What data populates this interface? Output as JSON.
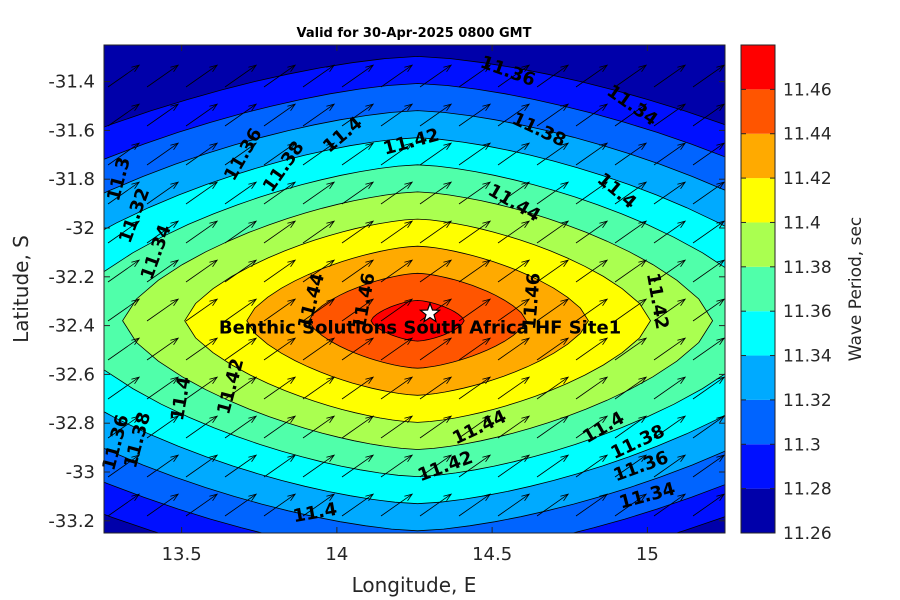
{
  "chart_data": {
    "type": "heatmap",
    "title": "Valid for 30-Apr-2025 0800 GMT",
    "xlabel": "Longitude, E",
    "ylabel": "Latitude, S",
    "colorbar_label": "Wave Period, sec",
    "xlim": [
      13.25,
      15.25
    ],
    "ylim": [
      -33.25,
      -31.25
    ],
    "xticks": [
      "13.5",
      "14",
      "14.5",
      "15"
    ],
    "xtick_values": [
      13.5,
      14,
      14.5,
      15
    ],
    "yticks": [
      "-31.4",
      "-31.6",
      "-31.8",
      "-32",
      "-32.2",
      "-32.4",
      "-32.6",
      "-32.8",
      "-33",
      "-33.2"
    ],
    "ytick_values": [
      -31.4,
      -31.6,
      -31.8,
      -32,
      -32.2,
      -32.4,
      -32.6,
      -32.8,
      -33,
      -33.2
    ],
    "colorbar_ticks": [
      "11.26",
      "11.28",
      "11.3",
      "11.32",
      "11.34",
      "11.36",
      "11.38",
      "11.4",
      "11.42",
      "11.44",
      "11.46"
    ],
    "levels": [
      11.26,
      11.28,
      11.3,
      11.32,
      11.34,
      11.36,
      11.38,
      11.4,
      11.42,
      11.44,
      11.46,
      11.48
    ],
    "colors": [
      "#0000aa",
      "#0010ff",
      "#0064ff",
      "#00aaff",
      "#00ffff",
      "#50ffaa",
      "#aaff50",
      "#ffff00",
      "#ffaa00",
      "#ff5500",
      "#ff0000"
    ],
    "peak": {
      "lon": 14.26,
      "lat": -32.38,
      "value": 11.475
    },
    "gradient": {
      "lon": 0.1,
      "lat": 0.18
    },
    "site": {
      "lon": 14.3,
      "lat": -32.35,
      "label": "Benthic Solutions South Africa HF Site1"
    },
    "vector_direction_deg": 35,
    "contour_labels": [
      {
        "text": "11.3",
        "lon": 13.3,
        "lat": -31.8,
        "angle": -75
      },
      {
        "text": "11.32",
        "lon": 13.35,
        "lat": -31.95,
        "angle": -70
      },
      {
        "text": "11.34",
        "lon": 13.42,
        "lat": -32.1,
        "angle": -70
      },
      {
        "text": "11.36",
        "lon": 13.7,
        "lat": -31.7,
        "angle": -60
      },
      {
        "text": "11.38",
        "lon": 13.83,
        "lat": -31.75,
        "angle": -55
      },
      {
        "text": "11.4",
        "lon": 14.02,
        "lat": -31.62,
        "angle": -40
      },
      {
        "text": "11.42",
        "lon": 14.24,
        "lat": -31.65,
        "angle": -15
      },
      {
        "text": "11.36",
        "lon": 14.55,
        "lat": -31.36,
        "angle": 20
      },
      {
        "text": "11.38",
        "lon": 14.65,
        "lat": -31.6,
        "angle": 25
      },
      {
        "text": "11.34",
        "lon": 14.95,
        "lat": -31.5,
        "angle": 35
      },
      {
        "text": "11.44",
        "lon": 14.57,
        "lat": -31.9,
        "angle": 30
      },
      {
        "text": "11.4",
        "lon": 14.9,
        "lat": -31.85,
        "angle": 40
      },
      {
        "text": "11.46",
        "lon": 14.63,
        "lat": -32.3,
        "angle": -85
      },
      {
        "text": "11.42",
        "lon": 15.03,
        "lat": -32.3,
        "angle": 80
      },
      {
        "text": "11.44",
        "lon": 13.92,
        "lat": -32.3,
        "angle": -75
      },
      {
        "text": "11.46",
        "lon": 14.09,
        "lat": -32.3,
        "angle": -80
      },
      {
        "text": "11.42",
        "lon": 13.66,
        "lat": -32.65,
        "angle": -75
      },
      {
        "text": "11.4",
        "lon": 13.5,
        "lat": -32.7,
        "angle": -80
      },
      {
        "text": "11.38",
        "lon": 13.36,
        "lat": -32.87,
        "angle": -75
      },
      {
        "text": "11.36",
        "lon": 13.29,
        "lat": -32.88,
        "angle": -75
      },
      {
        "text": "11.44",
        "lon": 14.46,
        "lat": -32.82,
        "angle": -25
      },
      {
        "text": "11.42",
        "lon": 14.35,
        "lat": -32.98,
        "angle": -20
      },
      {
        "text": "11.4",
        "lon": 14.86,
        "lat": -32.82,
        "angle": -30
      },
      {
        "text": "11.38",
        "lon": 14.97,
        "lat": -32.88,
        "angle": -25
      },
      {
        "text": "11.36",
        "lon": 14.98,
        "lat": -32.98,
        "angle": -20
      },
      {
        "text": "11.34",
        "lon": 15.0,
        "lat": -33.1,
        "angle": -15
      },
      {
        "text": "11.4",
        "lon": 13.93,
        "lat": -33.17,
        "angle": -10
      }
    ]
  }
}
